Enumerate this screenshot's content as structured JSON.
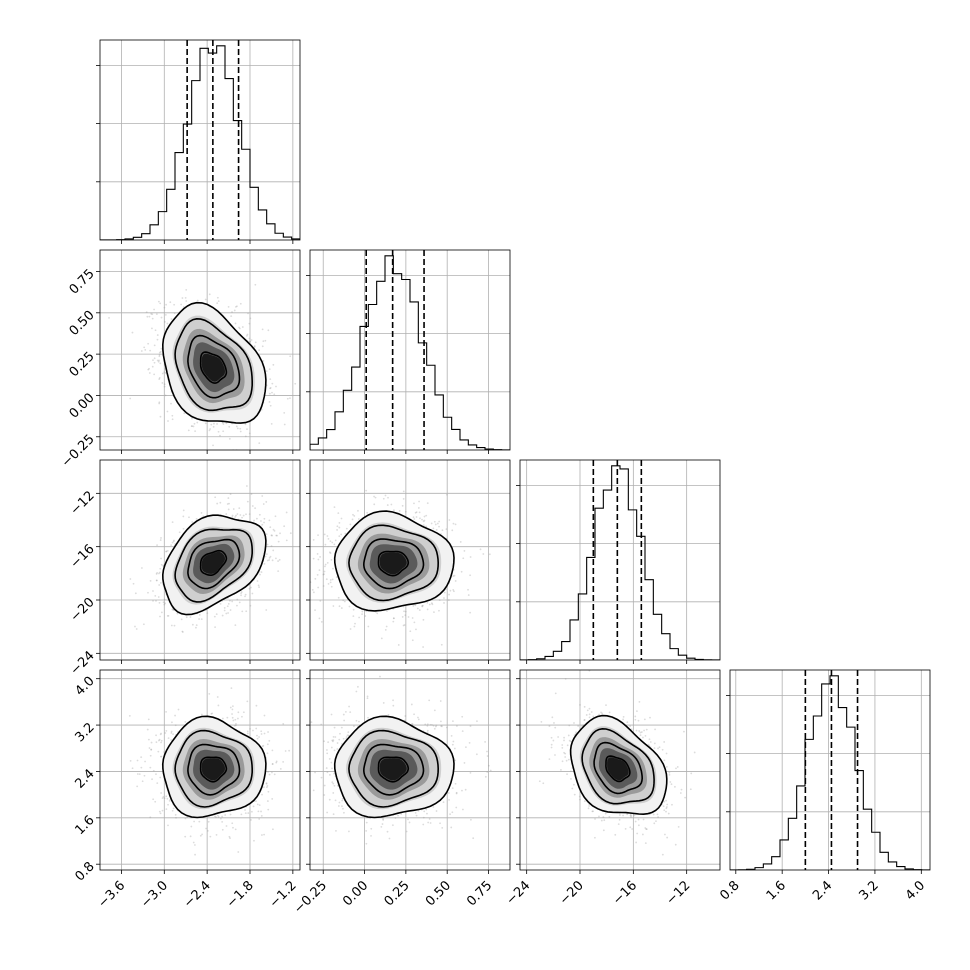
{
  "chart_data": {
    "type": "corner",
    "parameters": [
      {
        "range": [
          -3.9,
          -1.1
        ],
        "ticks": [
          -3.6,
          -3.0,
          -2.4,
          -1.8,
          -1.2
        ],
        "tick_labels": [
          "−3.6",
          "−3.0",
          "−2.4",
          "−1.8",
          "−1.2"
        ],
        "mean": -2.32,
        "sd": 0.36,
        "quantiles": [
          -2.68,
          -2.32,
          -1.96
        ]
      },
      {
        "range": [
          -0.33,
          0.88
        ],
        "ticks": [
          -0.25,
          0.0,
          0.25,
          0.5,
          0.75
        ],
        "tick_labels": [
          "−0.25",
          "0.00",
          "0.25",
          "0.50",
          "0.75"
        ],
        "mean": 0.17,
        "sd": 0.18,
        "quantiles": [
          0.01,
          0.17,
          0.36
        ]
      },
      {
        "range": [
          -24.5,
          -9.5
        ],
        "ticks": [
          -24,
          -20,
          -16,
          -12
        ],
        "tick_labels": [
          "−24",
          "−20",
          "−16",
          "−12"
        ],
        "mean": -17.2,
        "sd": 1.8,
        "quantiles": [
          -19.0,
          -17.2,
          -15.4
        ]
      },
      {
        "range": [
          0.7,
          4.15
        ],
        "ticks": [
          0.8,
          1.6,
          2.4,
          3.2,
          4.0
        ],
        "tick_labels": [
          "0.8",
          "1.6",
          "2.4",
          "3.2",
          "4.0"
        ],
        "mean": 2.45,
        "sd": 0.42,
        "quantiles": [
          2.0,
          2.45,
          2.9
        ]
      }
    ],
    "correlations": {
      "1-0": -0.3,
      "2-0": 0.35,
      "2-1": 0.0,
      "3-0": 0.0,
      "3-1": 0.0,
      "3-2": -0.3
    },
    "y_labels_rows": {
      "1": {
        "ticks": [
          -0.25,
          0.0,
          0.25,
          0.5,
          0.75
        ],
        "tick_labels": [
          "−0.25",
          "0.00",
          "0.25",
          "0.50",
          "0.75"
        ]
      },
      "2": {
        "ticks": [
          -24,
          -20,
          -16,
          -12
        ],
        "tick_labels": [
          "−24",
          "−20",
          "−16",
          "−12"
        ]
      },
      "3": {
        "ticks": [
          0.8,
          1.6,
          2.4,
          3.2,
          4.0
        ],
        "tick_labels": [
          "0.8",
          "1.6",
          "2.4",
          "3.2",
          "4.0"
        ]
      }
    },
    "contour_levels_sigma": [
      0.5,
      1.0,
      1.5,
      2.0
    ],
    "grid": true,
    "colors": {
      "line": "#000000",
      "grid": "#b0b0b0",
      "points": "#9a9a9a"
    }
  }
}
